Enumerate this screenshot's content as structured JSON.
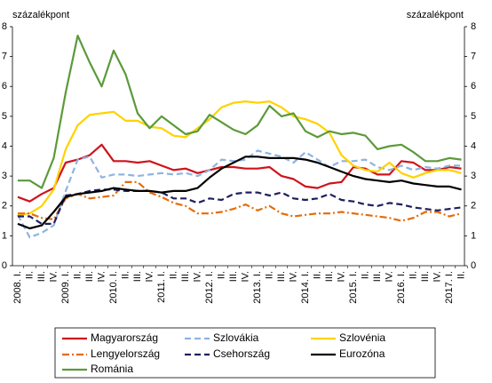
{
  "chart_data": {
    "type": "line",
    "y_label": "százalékpont",
    "y2_label": "százalékpont",
    "categories": [
      "2008. I.",
      "II.",
      "III.",
      "IV.",
      "2009. I.",
      "II.",
      "III.",
      "IV.",
      "2010. I.",
      "II.",
      "III.",
      "IV.",
      "2011. I.",
      "II.",
      "III.",
      "IV.",
      "2012. I.",
      "II.",
      "III.",
      "IV.",
      "2013. I.",
      "II.",
      "III.",
      "IV.",
      "2014. I.",
      "II.",
      "III.",
      "IV.",
      "2015. I.",
      "II.",
      "III.",
      "IV.",
      "2016. I.",
      "II.",
      "III.",
      "IV.",
      "2017. I.",
      "II."
    ],
    "ylim": [
      0,
      8
    ],
    "yticks": [
      0,
      1,
      2,
      3,
      4,
      5,
      6,
      7,
      8
    ],
    "y2lim": [
      0,
      8
    ],
    "y2ticks": [
      0,
      1,
      2,
      3,
      4,
      5,
      6,
      7,
      8
    ],
    "grid": false,
    "series": [
      {
        "name": "Magyarország",
        "color": "#d0121b",
        "style": "solid",
        "values": [
          2.3,
          2.15,
          2.4,
          2.6,
          3.45,
          3.55,
          3.7,
          4.05,
          3.5,
          3.5,
          3.45,
          3.5,
          3.35,
          3.2,
          3.25,
          3.1,
          3.2,
          3.3,
          3.3,
          3.25,
          3.25,
          3.3,
          3.0,
          2.9,
          2.65,
          2.6,
          2.75,
          2.8,
          3.3,
          3.25,
          3.05,
          3.05,
          3.5,
          3.45,
          3.2,
          3.2,
          3.3,
          3.25
        ]
      },
      {
        "name": "Szlovákia",
        "color": "#8db4e2",
        "style": "dashed",
        "values": [
          1.7,
          0.95,
          1.1,
          1.35,
          2.5,
          3.55,
          3.65,
          2.95,
          3.05,
          3.05,
          3.0,
          3.05,
          3.1,
          3.05,
          3.1,
          3.0,
          3.2,
          3.55,
          3.5,
          3.55,
          3.85,
          3.75,
          3.65,
          3.45,
          3.8,
          3.55,
          3.3,
          3.5,
          3.5,
          3.55,
          3.3,
          3.2,
          3.35,
          3.2,
          3.3,
          3.25,
          3.35,
          3.35
        ]
      },
      {
        "name": "Szlovénia",
        "color": "#ffd200",
        "style": "solid",
        "values": [
          1.7,
          1.75,
          2.0,
          2.55,
          3.9,
          4.7,
          5.05,
          5.1,
          5.15,
          4.85,
          4.85,
          4.65,
          4.6,
          4.35,
          4.3,
          4.6,
          4.9,
          5.3,
          5.45,
          5.5,
          5.45,
          5.5,
          5.3,
          5.0,
          4.9,
          4.75,
          4.45,
          3.7,
          3.35,
          3.2,
          3.15,
          3.45,
          3.1,
          2.95,
          3.1,
          3.2,
          3.2,
          3.1
        ]
      },
      {
        "name": "Lengyelország",
        "color": "#e46c0a",
        "style": "dashdot",
        "values": [
          1.75,
          1.75,
          1.6,
          1.55,
          2.25,
          2.4,
          2.25,
          2.3,
          2.35,
          2.8,
          2.8,
          2.45,
          2.3,
          2.1,
          2.0,
          1.75,
          1.75,
          1.8,
          1.9,
          2.05,
          1.85,
          2.0,
          1.75,
          1.65,
          1.7,
          1.75,
          1.75,
          1.8,
          1.75,
          1.7,
          1.65,
          1.6,
          1.5,
          1.6,
          1.8,
          1.8,
          1.65,
          1.75
        ]
      },
      {
        "name": "Csehország",
        "color": "#1f1f5f",
        "style": "dashed",
        "values": [
          1.65,
          1.65,
          1.4,
          1.4,
          2.35,
          2.4,
          2.5,
          2.55,
          2.55,
          2.5,
          2.5,
          2.5,
          2.45,
          2.25,
          2.25,
          2.1,
          2.25,
          2.2,
          2.4,
          2.45,
          2.45,
          2.35,
          2.45,
          2.25,
          2.2,
          2.25,
          2.4,
          2.2,
          2.15,
          2.05,
          2.0,
          2.1,
          2.05,
          1.95,
          1.9,
          1.85,
          1.9,
          1.95
        ]
      },
      {
        "name": "Eurozóna",
        "color": "#000000",
        "style": "solid",
        "values": [
          1.4,
          1.25,
          1.35,
          1.8,
          2.3,
          2.4,
          2.45,
          2.5,
          2.6,
          2.55,
          2.5,
          2.5,
          2.45,
          2.5,
          2.5,
          2.6,
          2.95,
          3.25,
          3.45,
          3.65,
          3.65,
          3.6,
          3.6,
          3.6,
          3.55,
          3.45,
          3.3,
          3.15,
          3.0,
          2.9,
          2.85,
          2.8,
          2.85,
          2.75,
          2.7,
          2.65,
          2.65,
          2.55
        ]
      },
      {
        "name": "Románia",
        "color": "#5b9a3a",
        "style": "solid",
        "values": [
          2.85,
          2.85,
          2.6,
          3.6,
          5.8,
          7.7,
          6.8,
          6.0,
          7.2,
          6.4,
          5.1,
          4.6,
          5.0,
          4.7,
          4.4,
          4.5,
          5.05,
          4.8,
          4.55,
          4.4,
          4.7,
          5.35,
          5.0,
          5.1,
          4.5,
          4.3,
          4.5,
          4.4,
          4.45,
          4.35,
          3.9,
          4.0,
          4.05,
          3.8,
          3.5,
          3.5,
          3.6,
          3.55
        ]
      }
    ]
  }
}
